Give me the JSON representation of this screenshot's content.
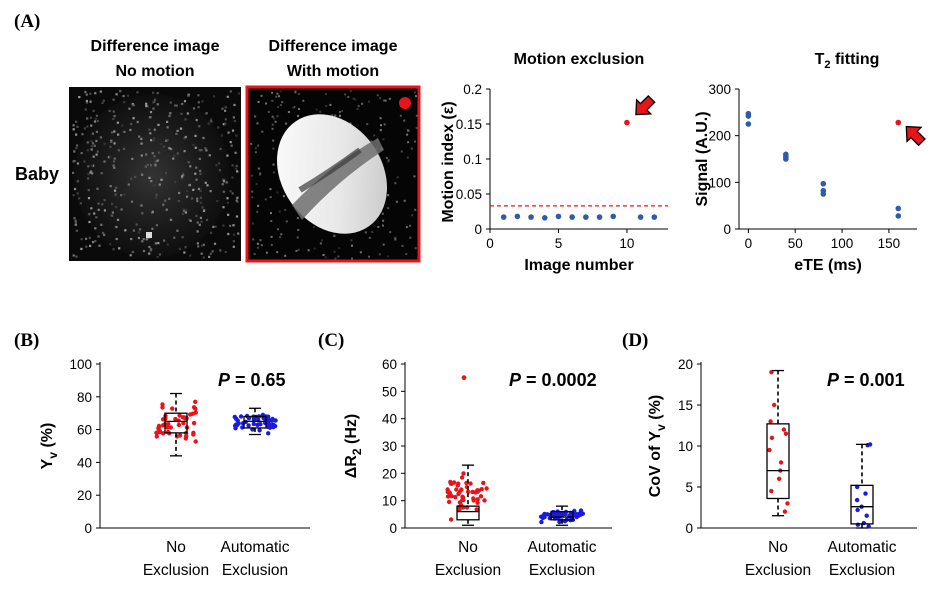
{
  "panel_labels": {
    "a": "(A)",
    "b": "(B)",
    "c": "(C)",
    "d": "(D)"
  },
  "panel_a": {
    "row_label": "Baby",
    "img1_title_1": "Difference image",
    "img1_title_2": "No motion",
    "img2_title_1": "Difference image",
    "img2_title_2": "With motion",
    "colors": {
      "red": "#e8141a",
      "blue": "#2f5ba8",
      "frame": "#e8141a"
    }
  },
  "chart_data": [
    {
      "id": "motion",
      "type": "scatter",
      "title": "Motion exclusion",
      "xlabel": "Image number",
      "ylabel": "Motion index (ε)",
      "xlim": [
        0,
        13
      ],
      "ylim": [
        0,
        0.2
      ],
      "xticks": [
        "0",
        "5",
        "10"
      ],
      "yticks": [
        "0",
        "0.05",
        "0.1",
        "0.15",
        "0.2"
      ],
      "threshold": 0.033,
      "x": [
        1,
        2,
        3,
        4,
        5,
        6,
        7,
        8,
        9,
        10,
        11,
        12
      ],
      "y": [
        0.017,
        0.018,
        0.017,
        0.016,
        0.018,
        0.017,
        0.017,
        0.017,
        0.018,
        0.152,
        0.017,
        0.017
      ],
      "highlight_index": 9
    },
    {
      "id": "t2fit",
      "type": "scatter",
      "title": "T",
      "title_sub": "2",
      "title_rest": " fitting",
      "xlabel": "eTE (ms)",
      "ylabel": "Signal (A.U.)",
      "xlim": [
        -10,
        180
      ],
      "ylim": [
        0,
        300
      ],
      "xticks": [
        "0",
        "50",
        "100",
        "150"
      ],
      "yticks": [
        "0",
        "100",
        "200",
        "300"
      ],
      "x": [
        0,
        0,
        0,
        40,
        40,
        40,
        80,
        80,
        80,
        160,
        160,
        160
      ],
      "y": [
        225,
        242,
        247,
        150,
        155,
        160,
        75,
        82,
        97,
        28,
        44,
        228
      ],
      "highlight_index": 11
    },
    {
      "id": "yv",
      "type": "boxplot",
      "ylabel_main": "Y",
      "ylabel_sub": "v",
      "ylabel_rest": " (%)",
      "ylim": [
        0,
        100
      ],
      "yticks": [
        "0",
        "20",
        "40",
        "60",
        "80",
        "100"
      ],
      "pvalue_prefix": "P",
      "pvalue": " = 0.65",
      "categories": [
        [
          "No",
          "Exclusion"
        ],
        [
          "Automatic",
          "Exclusion"
        ]
      ],
      "groups": [
        {
          "name": "No Exclusion",
          "color": "#e8141a",
          "box": {
            "whisker_low": 44,
            "q1": 58,
            "median": 65,
            "q3": 70,
            "whisker_high": 82
          }
        },
        {
          "name": "Automatic Exclusion",
          "color": "#1a1ae0",
          "box": {
            "whisker_low": 57,
            "q1": 61,
            "median": 65,
            "q3": 68,
            "whisker_high": 73
          }
        }
      ]
    },
    {
      "id": "dr2",
      "type": "boxplot",
      "ylabel_main": "ΔR",
      "ylabel_sub": "2",
      "ylabel_rest": " (Hz)",
      "ylim": [
        0,
        60
      ],
      "yticks": [
        "0",
        "10",
        "20",
        "30",
        "40",
        "50",
        "60"
      ],
      "pvalue_prefix": "P",
      "pvalue": " = 0.0002",
      "categories": [
        [
          "No",
          "Exclusion"
        ],
        [
          "Automatic",
          "Exclusion"
        ]
      ],
      "groups": [
        {
          "name": "No Exclusion",
          "color": "#e8141a",
          "box": {
            "whisker_low": 1,
            "q1": 3,
            "median": 6,
            "q3": 8,
            "whisker_high": 23
          },
          "outliers": [
            55
          ]
        },
        {
          "name": "Automatic Exclusion",
          "color": "#1a1ae0",
          "box": {
            "whisker_low": 1,
            "q1": 3,
            "median": 4,
            "q3": 6,
            "whisker_high": 8
          }
        }
      ]
    },
    {
      "id": "cov",
      "type": "boxplot",
      "ylabel_main": "CoV of Y",
      "ylabel_sub": "v",
      "ylabel_rest": " (%)",
      "ylim": [
        0,
        20
      ],
      "yticks": [
        "0",
        "5",
        "10",
        "15",
        "20"
      ],
      "pvalue_prefix": "P",
      "pvalue": " = 0.001",
      "categories": [
        [
          "No",
          "Exclusion"
        ],
        [
          "Automatic",
          "Exclusion"
        ]
      ],
      "groups": [
        {
          "name": "No Exclusion",
          "color": "#e8141a",
          "box": {
            "whisker_low": 1.5,
            "q1": 3.6,
            "median": 7,
            "q3": 12.7,
            "whisker_high": 19.2
          },
          "points": [
            2,
            3,
            4.5,
            6,
            7,
            8,
            9.5,
            11,
            11.5,
            12,
            13,
            15,
            19
          ]
        },
        {
          "name": "Automatic Exclusion",
          "color": "#1a1ae0",
          "box": {
            "whisker_low": 0,
            "q1": 0.5,
            "median": 2.6,
            "q3": 5.2,
            "whisker_high": 10.2
          },
          "points": [
            0.2,
            0.4,
            0.6,
            1.5,
            2.2,
            2.6,
            3.4,
            4.2,
            5,
            10.1,
            10.2
          ]
        }
      ]
    }
  ]
}
